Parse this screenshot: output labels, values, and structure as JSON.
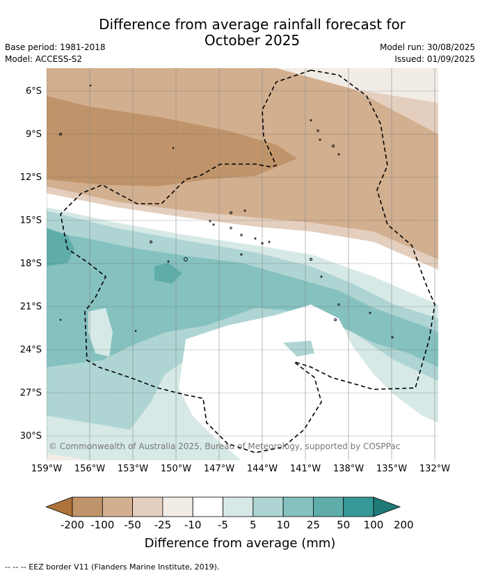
{
  "title": "Difference from average rainfall forecast for\nOctober 2025",
  "meta_left": "Base period: 1981-2018\nModel: ACCESS-S2",
  "meta_right": "Model run: 30/08/2025\nIssued: 01/09/2025",
  "copyright": "© Commonwealth of Australia 2025, Bureau of Meteorology, supported by COSPPac",
  "lat_labels": [
    "6°S",
    "9°S",
    "12°S",
    "15°S",
    "18°S",
    "21°S",
    "24°S",
    "27°S",
    "30°S"
  ],
  "lon_labels": [
    "159°W",
    "156°W",
    "153°W",
    "150°W",
    "147°W",
    "144°W",
    "141°W",
    "138°W",
    "135°W",
    "132°W"
  ],
  "colorbar": {
    "title": "Difference from average (mm)",
    "ticks": [
      "-200",
      "-100",
      "-50",
      "-25",
      "-10",
      "-5",
      "5",
      "10",
      "25",
      "50",
      "100",
      "200"
    ],
    "colors": [
      "#ad733b",
      "#c0946a",
      "#d2af8f",
      "#e4cfbe",
      "#f2ece6",
      "#ffffff",
      "#d6e9e7",
      "#aed5d3",
      "#85c1bf",
      "#5eadaa",
      "#369997",
      "#1f7a78"
    ]
  },
  "eez_legend": "-- -- -- EEZ border V11 (Flanders Marine Institute, 2019)."
}
